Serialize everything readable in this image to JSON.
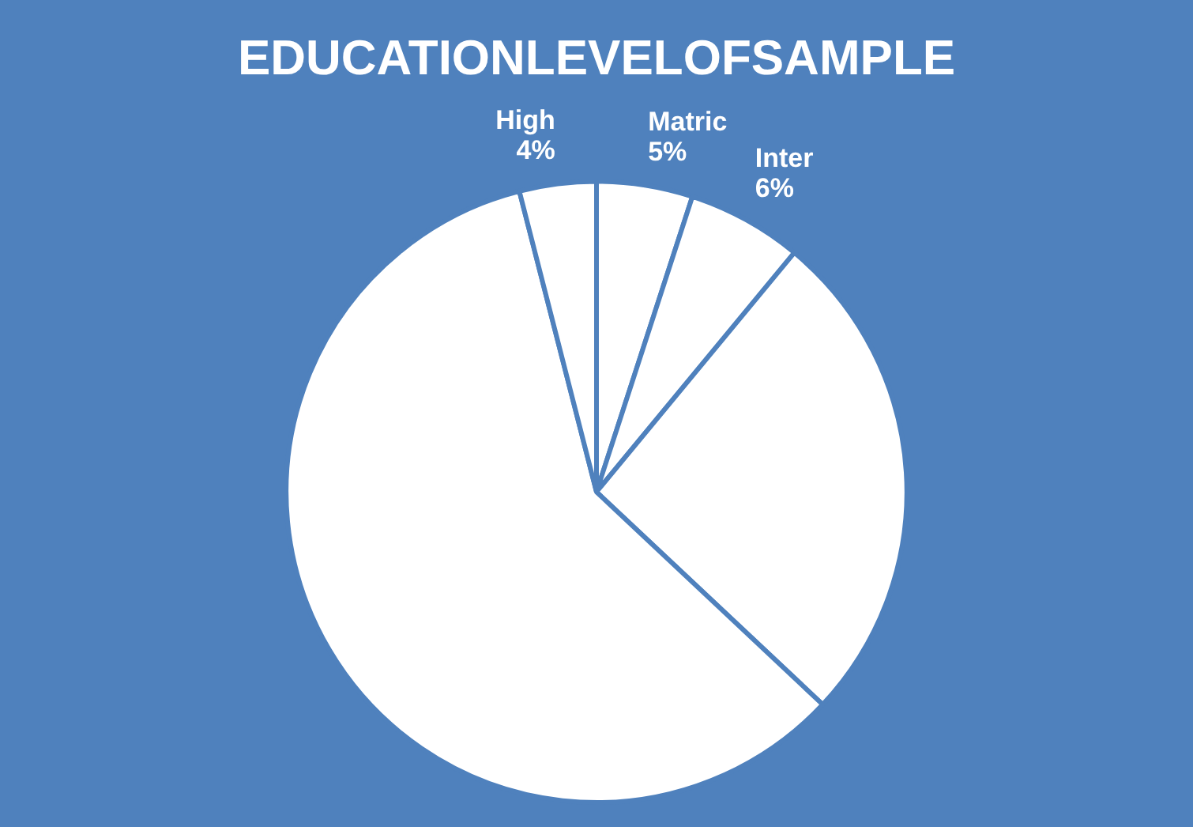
{
  "chart_data": {
    "type": "pie",
    "title": "EDUCATIONLEVELOFSAMPLE",
    "categories": [
      "Matric",
      "Inter",
      null,
      null,
      "High"
    ],
    "values": [
      5,
      6,
      26,
      59,
      4
    ],
    "value_labels": [
      "5%",
      "6%",
      null,
      null,
      "4%"
    ],
    "colors": [
      "#ffffff",
      "#ffffff",
      "#ffffff",
      "#ffffff",
      "#ffffff"
    ],
    "legend": false
  }
}
